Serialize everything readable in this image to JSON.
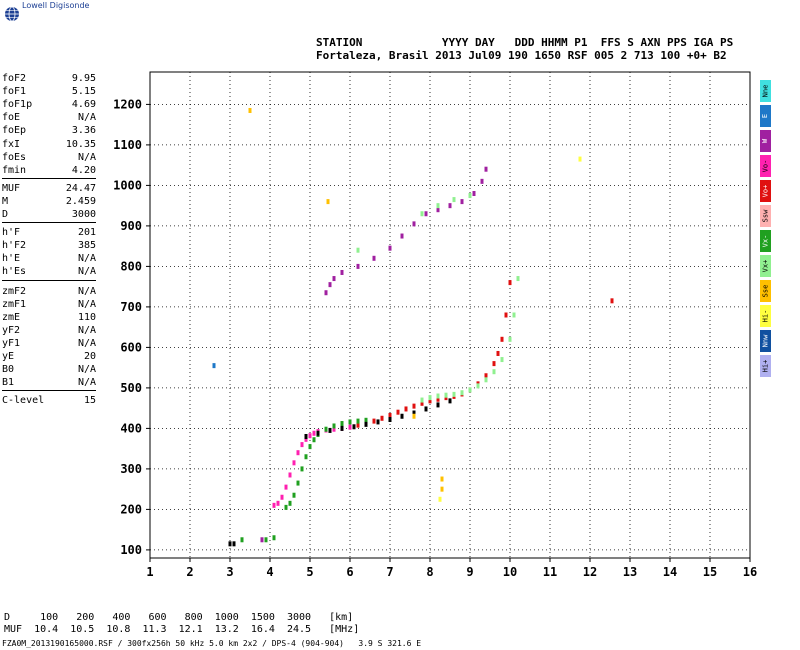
{
  "app": {
    "logo_text": "Lowell Digisonde"
  },
  "header": {
    "line1": "STATION            YYYY DAY   DDD HHMM P1  FFS S AXN PPS IGA PS",
    "line2": "Fortaleza, Brasil 2013 Jul09 190 1650 RSF 005 2 713 100 +0+ B2"
  },
  "params": [
    {
      "k": "foF2",
      "v": "9.95"
    },
    {
      "k": "foF1",
      "v": "5.15"
    },
    {
      "k": "foF1p",
      "v": "4.69"
    },
    {
      "k": "foE",
      "v": "N/A"
    },
    {
      "k": "foEp",
      "v": "3.36"
    },
    {
      "k": "fxI",
      "v": "10.35"
    },
    {
      "k": "foEs",
      "v": "N/A"
    },
    {
      "k": "fmin",
      "v": "4.20"
    },
    {
      "k": "MUF",
      "v": "24.47"
    },
    {
      "k": "M",
      "v": "2.459"
    },
    {
      "k": "D",
      "v": "3000"
    },
    {
      "k": "h'F",
      "v": "201"
    },
    {
      "k": "h'F2",
      "v": "385"
    },
    {
      "k": "h'E",
      "v": "N/A"
    },
    {
      "k": "h'Es",
      "v": "N/A"
    },
    {
      "k": "zmF2",
      "v": "N/A"
    },
    {
      "k": "zmF1",
      "v": "N/A"
    },
    {
      "k": "zmE",
      "v": "110"
    },
    {
      "k": "yF2",
      "v": "N/A"
    },
    {
      "k": "yF1",
      "v": "N/A"
    },
    {
      "k": "yE",
      "v": "20"
    },
    {
      "k": "B0",
      "v": "N/A"
    },
    {
      "k": "B1",
      "v": "N/A"
    },
    {
      "k": "C-level",
      "v": "15"
    }
  ],
  "legend": [
    {
      "label": "Nne",
      "color": "#40e0e0"
    },
    {
      "label": "E",
      "color": "#1e78c8"
    },
    {
      "label": "W",
      "color": "#a020a0"
    },
    {
      "label": "Vo-",
      "color": "#ff20b0"
    },
    {
      "label": "Vo+",
      "color": "#e01010"
    },
    {
      "label": "Ssw",
      "color": "#ffb0b0"
    },
    {
      "label": "Vx-",
      "color": "#20a020"
    },
    {
      "label": "Vx+",
      "color": "#90f090"
    },
    {
      "label": "Sse",
      "color": "#ffc000"
    },
    {
      "label": "Hi-",
      "color": "#ffff40"
    },
    {
      "label": "Nnw",
      "color": "#1050a0"
    },
    {
      "label": "Hi+",
      "color": "#b0b0f0"
    }
  ],
  "bottom": {
    "line1": "D     100   200   400   600   800  1000  1500  3000   [km]",
    "line2": "MUF  10.4  10.5  10.8  11.3  12.1  13.2  16.4  24.5   [MHz]",
    "footer": "FZA0M_2013190165000.RSF / 300fx256h 50 kHz 5.0 km 2x2 / DPS-4 (904-904)   3.9 S 321.6 E"
  },
  "chart_data": {
    "type": "scatter",
    "xlim": [
      1,
      16
    ],
    "ylim": [
      80,
      1280
    ],
    "xticks": [
      1,
      2,
      3,
      4,
      5,
      6,
      7,
      8,
      9,
      10,
      11,
      12,
      13,
      14,
      15,
      16
    ],
    "yticks": [
      100,
      200,
      300,
      400,
      500,
      600,
      700,
      800,
      900,
      1000,
      1100,
      1200
    ],
    "grid": true,
    "series": [
      {
        "color": "#ff20b0",
        "points": [
          [
            4.1,
            210
          ],
          [
            4.2,
            215
          ],
          [
            4.3,
            230
          ],
          [
            4.4,
            255
          ],
          [
            4.5,
            285
          ],
          [
            4.6,
            315
          ],
          [
            4.7,
            340
          ],
          [
            4.8,
            360
          ],
          [
            4.9,
            373
          ],
          [
            5.0,
            382
          ],
          [
            5.1,
            388
          ],
          [
            5.2,
            392
          ],
          [
            5.4,
            396
          ],
          [
            5.6,
            398
          ],
          [
            5.8,
            400
          ],
          [
            6.0,
            403
          ]
        ]
      },
      {
        "color": "#e01010",
        "points": [
          [
            6.2,
            408
          ],
          [
            6.4,
            412
          ],
          [
            6.6,
            418
          ],
          [
            6.8,
            425
          ],
          [
            7.0,
            432
          ],
          [
            7.2,
            440
          ],
          [
            7.4,
            448
          ],
          [
            7.6,
            455
          ],
          [
            7.8,
            462
          ],
          [
            8.0,
            468
          ],
          [
            8.2,
            472
          ],
          [
            8.4,
            476
          ],
          [
            8.6,
            479
          ],
          [
            8.8,
            485
          ],
          [
            9.0,
            495
          ],
          [
            9.2,
            510
          ],
          [
            9.4,
            530
          ],
          [
            9.6,
            560
          ],
          [
            9.7,
            585
          ],
          [
            9.8,
            620
          ],
          [
            9.9,
            680
          ],
          [
            10.0,
            760
          ]
        ]
      },
      {
        "color": "#20a020",
        "points": [
          [
            4.4,
            205
          ],
          [
            4.5,
            215
          ],
          [
            4.6,
            235
          ],
          [
            4.7,
            265
          ],
          [
            4.8,
            300
          ],
          [
            4.9,
            330
          ],
          [
            5.0,
            355
          ],
          [
            5.1,
            372
          ],
          [
            5.2,
            385
          ],
          [
            5.4,
            398
          ],
          [
            5.6,
            406
          ],
          [
            5.8,
            412
          ],
          [
            6.0,
            416
          ],
          [
            6.2,
            418
          ],
          [
            6.4,
            420
          ]
        ]
      },
      {
        "color": "#90f090",
        "points": [
          [
            7.8,
            470
          ],
          [
            8.0,
            476
          ],
          [
            8.2,
            480
          ],
          [
            8.4,
            482
          ],
          [
            8.6,
            484
          ],
          [
            8.8,
            488
          ],
          [
            9.0,
            495
          ],
          [
            9.2,
            505
          ],
          [
            9.4,
            520
          ],
          [
            9.6,
            540
          ],
          [
            9.8,
            570
          ],
          [
            10.0,
            620
          ],
          [
            10.1,
            680
          ],
          [
            10.2,
            770
          ]
        ]
      },
      {
        "color": "#000000",
        "points": [
          [
            4.9,
            380
          ],
          [
            5.2,
            388
          ],
          [
            5.5,
            395
          ],
          [
            5.8,
            400
          ],
          [
            6.1,
            404
          ],
          [
            6.4,
            410
          ],
          [
            6.7,
            416
          ],
          [
            7.0,
            422
          ],
          [
            7.3,
            430
          ],
          [
            7.6,
            438
          ],
          [
            7.9,
            448
          ],
          [
            8.2,
            458
          ],
          [
            8.5,
            468
          ]
        ]
      },
      {
        "color": "#a020a0",
        "points": [
          [
            5.4,
            735
          ],
          [
            5.5,
            755
          ],
          [
            5.6,
            770
          ],
          [
            5.8,
            785
          ],
          [
            6.2,
            800
          ],
          [
            6.6,
            820
          ],
          [
            7.0,
            845
          ],
          [
            7.3,
            875
          ],
          [
            7.6,
            905
          ],
          [
            7.9,
            930
          ],
          [
            8.2,
            940
          ],
          [
            8.5,
            950
          ],
          [
            8.8,
            960
          ],
          [
            9.1,
            980
          ],
          [
            9.3,
            1010
          ],
          [
            9.4,
            1040
          ]
        ]
      },
      {
        "color": "#90f090",
        "points": [
          [
            6.2,
            840
          ],
          [
            7.8,
            930
          ],
          [
            8.2,
            950
          ],
          [
            8.6,
            965
          ],
          [
            9.0,
            975
          ]
        ]
      },
      {
        "color": "#000000",
        "points": [
          [
            3.0,
            115
          ],
          [
            3.1,
            115
          ]
        ]
      },
      {
        "color": "#20a020",
        "points": [
          [
            3.3,
            125
          ],
          [
            3.9,
            125
          ],
          [
            4.1,
            130
          ]
        ]
      },
      {
        "color": "#a020a0",
        "points": [
          [
            3.8,
            125
          ]
        ]
      },
      {
        "color": "#ffc000",
        "points": [
          [
            3.5,
            1185
          ],
          [
            5.45,
            960
          ],
          [
            7.6,
            430
          ],
          [
            8.3,
            275
          ],
          [
            8.3,
            250
          ]
        ]
      },
      {
        "color": "#ffff40",
        "points": [
          [
            11.75,
            1065
          ],
          [
            8.25,
            225
          ]
        ]
      },
      {
        "color": "#1e78c8",
        "points": [
          [
            2.6,
            555
          ]
        ]
      },
      {
        "color": "#e01010",
        "points": [
          [
            12.55,
            715
          ]
        ]
      }
    ]
  }
}
